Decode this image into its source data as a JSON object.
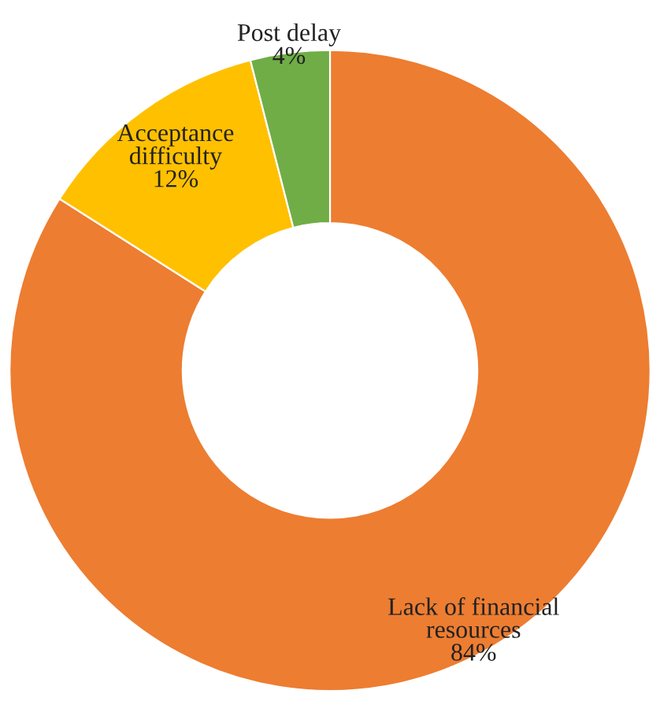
{
  "chart_data": {
    "type": "donut",
    "categories": [
      "Lack of financial\nresources",
      "Acceptance\ndifficulty",
      "Post delay"
    ],
    "values": [
      84,
      12,
      4
    ],
    "colors": [
      "#ed7d31",
      "#ffc000",
      "#70ad47"
    ],
    "value_labels": [
      "84%",
      "12%",
      "4%"
    ],
    "legend": false
  }
}
